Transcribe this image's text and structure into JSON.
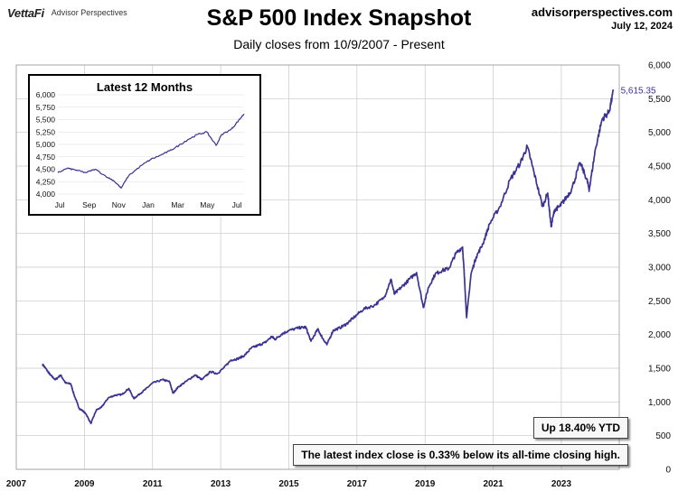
{
  "header": {
    "logo_mark": "VettaFi",
    "logo_sub": "Advisor Perspectives",
    "title": "S&P 500 Index Snapshot",
    "subtitle": "Daily closes from 10/9/2007 - Present",
    "site": "advisorperspectives.com",
    "date": "July 12, 2024"
  },
  "annotations": {
    "ytd": "Up 18.40% YTD",
    "ath": "The latest index close is 0.33% below its all-time closing high."
  },
  "colors": {
    "line": "#3b3392",
    "grid": "#c8c8c8",
    "axis": "#333333"
  },
  "chart_data": [
    {
      "type": "line",
      "xlabel": "",
      "ylabel": "",
      "ylim": [
        0,
        6000
      ],
      "grid": true,
      "y_axis_side": "right",
      "x_ticks": [
        "2007",
        "2009",
        "2011",
        "2013",
        "2015",
        "2017",
        "2019",
        "2021",
        "2023"
      ],
      "y_ticks": [
        "0",
        "500",
        "1,000",
        "1,500",
        "2,000",
        "2,500",
        "3,000",
        "3,500",
        "4,000",
        "4,500",
        "5,000",
        "5,500",
        "6,000"
      ],
      "last_value_label": "5,615.35",
      "series": [
        {
          "x": [
            2007.77,
            2007.9,
            2008.0,
            2008.15,
            2008.3,
            2008.45,
            2008.6,
            2008.7,
            2008.85,
            2008.95,
            2009.05,
            2009.19,
            2009.35,
            2009.5,
            2009.7,
            2009.9,
            2010.1,
            2010.3,
            2010.45,
            2010.6,
            2010.8,
            2011.0,
            2011.3,
            2011.5,
            2011.6,
            2011.75,
            2012.0,
            2012.25,
            2012.45,
            2012.7,
            2012.9,
            2013.1,
            2013.3,
            2013.5,
            2013.7,
            2013.9,
            2014.1,
            2014.3,
            2014.5,
            2014.6,
            2014.8,
            2015.0,
            2015.3,
            2015.5,
            2015.65,
            2015.85,
            2016.0,
            2016.12,
            2016.3,
            2016.5,
            2016.7,
            2016.9,
            2017.2,
            2017.5,
            2017.8,
            2018.0,
            2018.1,
            2018.3,
            2018.5,
            2018.75,
            2018.95,
            2019.1,
            2019.3,
            2019.5,
            2019.7,
            2019.9,
            2020.1,
            2020.15,
            2020.22,
            2020.35,
            2020.5,
            2020.7,
            2020.9,
            2021.2,
            2021.5,
            2021.8,
            2022.0,
            2022.2,
            2022.45,
            2022.6,
            2022.7,
            2022.8,
            2022.95,
            2023.1,
            2023.3,
            2023.55,
            2023.75,
            2023.82,
            2024.0,
            2024.2,
            2024.4,
            2024.53
          ],
          "values": [
            1560,
            1470,
            1400,
            1330,
            1400,
            1280,
            1270,
            1100,
            900,
            870,
            820,
            680,
            880,
            920,
            1060,
            1100,
            1110,
            1200,
            1050,
            1110,
            1190,
            1280,
            1330,
            1300,
            1130,
            1220,
            1310,
            1400,
            1330,
            1450,
            1420,
            1510,
            1620,
            1640,
            1690,
            1800,
            1840,
            1880,
            1970,
            1930,
            2010,
            2060,
            2100,
            2110,
            1900,
            2080,
            1940,
            1850,
            2060,
            2100,
            2160,
            2250,
            2380,
            2430,
            2550,
            2820,
            2600,
            2700,
            2800,
            2920,
            2400,
            2700,
            2900,
            2950,
            2980,
            3200,
            3300,
            2900,
            2250,
            2900,
            3150,
            3350,
            3650,
            3900,
            4300,
            4550,
            4790,
            4400,
            3900,
            4100,
            3600,
            3850,
            3900,
            4000,
            4150,
            4550,
            4300,
            4150,
            4750,
            5200,
            5300,
            5615
          ]
        }
      ]
    },
    {
      "type": "line",
      "title": "Latest 12 Months",
      "ylim": [
        4000,
        6000
      ],
      "x_ticks": [
        "Jul",
        "Sep",
        "Nov",
        "Jan",
        "Mar",
        "May",
        "Jul"
      ],
      "y_ticks": [
        "4,000",
        "4,250",
        "4,500",
        "4,750",
        "5,000",
        "5,250",
        "5,500",
        "5,750",
        "6,000"
      ],
      "series": [
        {
          "x": [
            0,
            0.05,
            0.1,
            0.15,
            0.2,
            0.27,
            0.3,
            0.34,
            0.38,
            0.45,
            0.5,
            0.55,
            0.6,
            0.65,
            0.7,
            0.75,
            0.8,
            0.85,
            0.88,
            0.93,
            0.97,
            1.0
          ],
          "values": [
            4430,
            4520,
            4480,
            4430,
            4500,
            4330,
            4270,
            4120,
            4370,
            4580,
            4700,
            4780,
            4870,
            4980,
            5100,
            5200,
            5250,
            4980,
            5200,
            5300,
            5480,
            5615
          ]
        }
      ]
    }
  ]
}
